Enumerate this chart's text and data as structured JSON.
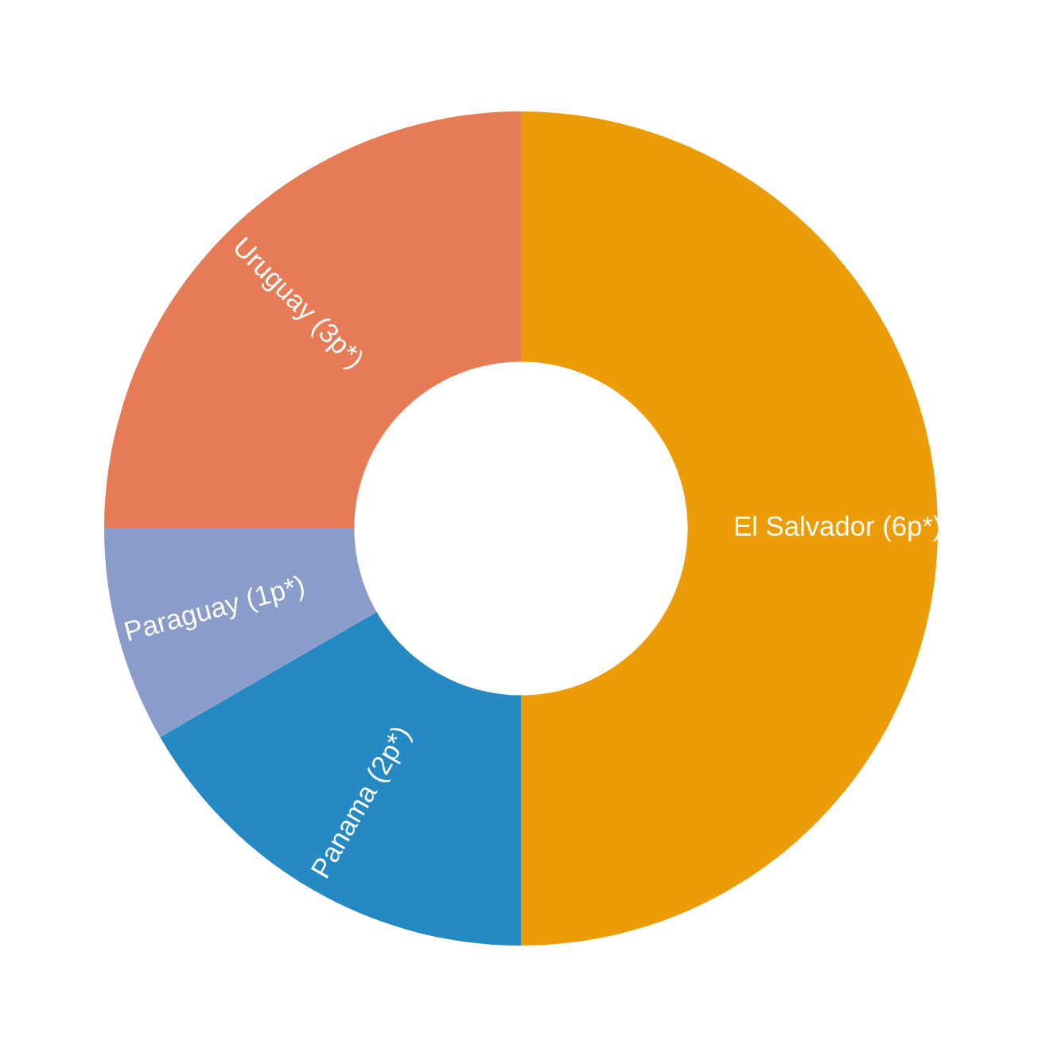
{
  "chart_data": {
    "type": "donut",
    "categories": [
      "El Salvador (6p*)",
      "Panama (2p*)",
      "Paraguay (1p*)",
      "Uruguay (3p*)"
    ],
    "values": [
      6,
      2,
      1,
      3
    ],
    "colors": [
      "#ec9c06",
      "#2589c3",
      "#8a9dca",
      "#e67b55"
    ],
    "legend": false
  }
}
